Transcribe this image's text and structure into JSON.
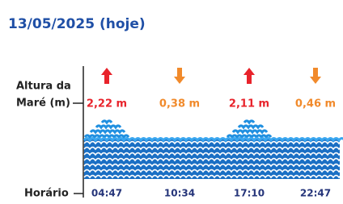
{
  "header": {
    "title": "13/05/2025 (hoje)"
  },
  "labels": {
    "height_line1": "Altura da",
    "height_line2": "Maré (m)",
    "time": "Horário"
  },
  "tides": [
    {
      "direction": "up",
      "color": "#e8232b",
      "height": "2,22 m",
      "time": "04:47"
    },
    {
      "direction": "down",
      "color": "#f18a2b",
      "height": "0,38 m",
      "time": "10:34"
    },
    {
      "direction": "up",
      "color": "#e8232b",
      "height": "2,11 m",
      "time": "17:10"
    },
    {
      "direction": "down",
      "color": "#f18a2b",
      "height": "0,46 m",
      "time": "22:47"
    }
  ]
}
